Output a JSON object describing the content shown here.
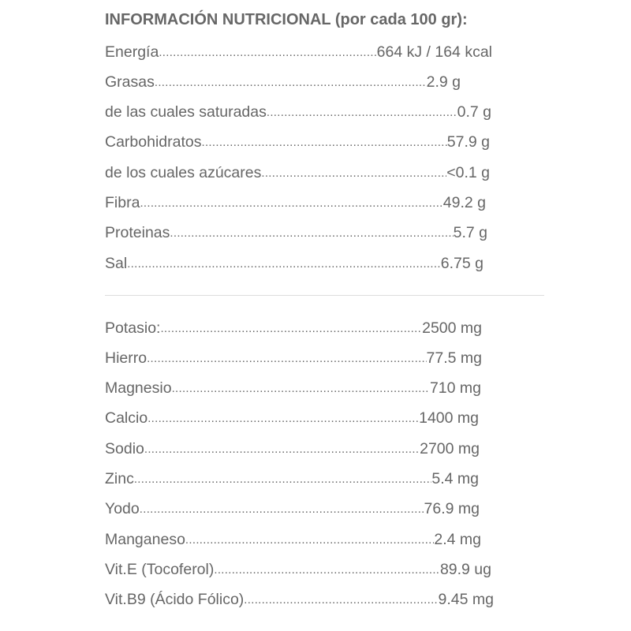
{
  "title": "INFORMACIÓN NUTRICIONAL (por cada 100 gr):",
  "nutrients": [
    {
      "label": "Energía",
      "value": "664 kJ / 164 kcal"
    },
    {
      "label": "Grasas",
      "value": "2.9 g"
    },
    {
      "label": "de las cuales saturadas",
      "value": "0.7 g"
    },
    {
      "label": "Carbohidratos",
      "value": "57.9 g"
    },
    {
      "label": "de los cuales azúcares",
      "value": "<0.1 g"
    },
    {
      "label": "Fibra",
      "value": "49.2 g"
    },
    {
      "label": "Proteinas",
      "value": " 5.7 g"
    },
    {
      "label": "Sal",
      "value": "6.75 g"
    }
  ],
  "minerals": [
    {
      "label": "Potasio:",
      "value": "2500 mg"
    },
    {
      "label": "Hierro",
      "value": "77.5 mg"
    },
    {
      "label": "Magnesio",
      "value": "710 mg"
    },
    {
      "label": "Calcio",
      "value": "1400 mg"
    },
    {
      "label": "Sodio",
      "value": "2700 mg"
    },
    {
      "label": "Zinc",
      "value": "5.4 mg"
    },
    {
      "label": "Yodo",
      "value": "76.9 mg"
    },
    {
      "label": "Manganeso",
      "value": "2.4 mg"
    },
    {
      "label": "Vit.E (Tocoferol)",
      "value": "89.9 ug"
    },
    {
      "label": "Vit.B9 (Ácido Fólico)",
      "value": "9.45 mg"
    }
  ]
}
